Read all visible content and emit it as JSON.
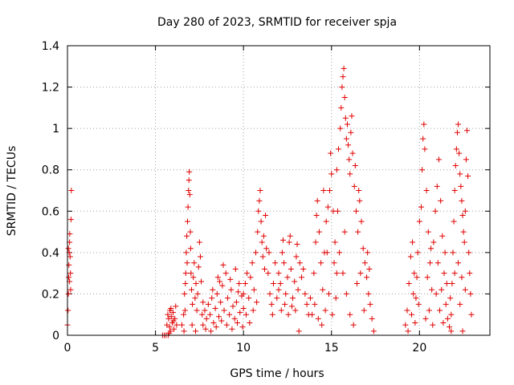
{
  "chart_data": {
    "type": "scatter",
    "title": "Day 280 of 2023, SRMTID for receiver spja",
    "xlabel": "GPS time / hours",
    "ylabel": "SRMTID / TECUs",
    "xlim": [
      0,
      24
    ],
    "ylim": [
      0,
      1.4
    ],
    "xticks": [
      0,
      5,
      10,
      15,
      20
    ],
    "xtick_labels": [
      "0",
      "5",
      "10",
      "15",
      "20"
    ],
    "yticks": [
      0,
      0.2,
      0.4,
      0.6,
      0.8,
      1.0,
      1.2,
      1.4
    ],
    "ytick_labels": [
      "0",
      "0.2",
      "0.4",
      "0.6",
      "0.8",
      "1",
      "1.2",
      "1.4"
    ],
    "grid": true,
    "marker": "+",
    "color": "#e00000",
    "series": [
      {
        "name": "SRMTID",
        "points": [
          [
            0.0,
            0.05
          ],
          [
            0.03,
            0.12
          ],
          [
            0.05,
            0.2
          ],
          [
            0.07,
            0.28
          ],
          [
            0.08,
            0.34
          ],
          [
            0.1,
            0.4
          ],
          [
            0.12,
            0.45
          ],
          [
            0.13,
            0.49
          ],
          [
            0.15,
            0.38
          ],
          [
            0.17,
            0.3
          ],
          [
            0.18,
            0.22
          ],
          [
            0.2,
            0.56
          ],
          [
            0.22,
            0.7
          ],
          [
            0.05,
            0.42
          ],
          [
            0.12,
            0.26
          ],
          [
            5.4,
            0.0
          ],
          [
            5.5,
            0.0
          ],
          [
            5.6,
            0.0
          ],
          [
            5.65,
            0.05
          ],
          [
            5.7,
            0.1
          ],
          [
            5.72,
            0.0
          ],
          [
            5.75,
            0.08
          ],
          [
            5.8,
            0.04
          ],
          [
            5.82,
            0.12
          ],
          [
            5.85,
            0.02
          ],
          [
            5.9,
            0.09
          ],
          [
            5.95,
            0.06
          ],
          [
            6.0,
            0.11
          ],
          [
            6.05,
            0.03
          ],
          [
            6.1,
            0.08
          ],
          [
            6.15,
            0.14
          ],
          [
            6.2,
            0.05
          ],
          [
            5.78,
            0.01
          ],
          [
            5.88,
            0.13
          ],
          [
            6.02,
            0.07
          ],
          [
            6.5,
            0.05
          ],
          [
            6.6,
            0.1
          ],
          [
            6.65,
            0.2
          ],
          [
            6.7,
            0.25
          ],
          [
            6.72,
            0.3
          ],
          [
            6.75,
            0.4
          ],
          [
            6.78,
            0.48
          ],
          [
            6.8,
            0.35
          ],
          [
            6.82,
            0.55
          ],
          [
            6.85,
            0.62
          ],
          [
            6.88,
            0.7
          ],
          [
            6.9,
            0.75
          ],
          [
            6.92,
            0.79
          ],
          [
            6.95,
            0.68
          ],
          [
            6.98,
            0.5
          ],
          [
            7.0,
            0.42
          ],
          [
            7.02,
            0.3
          ],
          [
            7.05,
            0.22
          ],
          [
            7.1,
            0.15
          ],
          [
            7.15,
            0.28
          ],
          [
            7.2,
            0.35
          ],
          [
            7.25,
            0.18
          ],
          [
            7.3,
            0.25
          ],
          [
            7.35,
            0.12
          ],
          [
            7.4,
            0.2
          ],
          [
            7.45,
            0.33
          ],
          [
            7.5,
            0.45
          ],
          [
            7.55,
            0.38
          ],
          [
            7.6,
            0.26
          ],
          [
            7.65,
            0.1
          ],
          [
            7.7,
            0.16
          ],
          [
            6.62,
            0.02
          ],
          [
            6.68,
            0.12
          ],
          [
            7.08,
            0.05
          ],
          [
            7.28,
            0.02
          ],
          [
            7.7,
            0.05
          ],
          [
            7.8,
            0.12
          ],
          [
            7.9,
            0.08
          ],
          [
            8.0,
            0.15
          ],
          [
            8.1,
            0.1
          ],
          [
            8.2,
            0.18
          ],
          [
            8.3,
            0.06
          ],
          [
            8.4,
            0.13
          ],
          [
            8.5,
            0.2
          ],
          [
            8.6,
            0.09
          ],
          [
            8.7,
            0.16
          ],
          [
            8.8,
            0.24
          ],
          [
            8.9,
            0.12
          ],
          [
            9.0,
            0.3
          ],
          [
            9.1,
            0.18
          ],
          [
            9.2,
            0.1
          ],
          [
            9.3,
            0.22
          ],
          [
            9.4,
            0.14
          ],
          [
            9.5,
            0.08
          ],
          [
            9.6,
            0.16
          ],
          [
            9.7,
            0.21
          ],
          [
            9.8,
            0.11
          ],
          [
            9.9,
            0.19
          ],
          [
            10.0,
            0.13
          ],
          [
            7.85,
            0.03
          ],
          [
            8.15,
            0.02
          ],
          [
            8.45,
            0.04
          ],
          [
            8.75,
            0.07
          ],
          [
            9.05,
            0.05
          ],
          [
            9.35,
            0.03
          ],
          [
            9.65,
            0.06
          ],
          [
            9.95,
            0.04
          ],
          [
            8.55,
            0.28
          ],
          [
            8.85,
            0.34
          ],
          [
            9.25,
            0.27
          ],
          [
            9.55,
            0.32
          ],
          [
            9.75,
            0.25
          ],
          [
            8.25,
            0.22
          ],
          [
            8.65,
            0.26
          ],
          [
            10.0,
            0.2
          ],
          [
            10.1,
            0.25
          ],
          [
            10.2,
            0.3
          ],
          [
            10.3,
            0.18
          ],
          [
            10.4,
            0.28
          ],
          [
            10.5,
            0.35
          ],
          [
            10.6,
            0.22
          ],
          [
            10.7,
            0.4
          ],
          [
            10.8,
            0.5
          ],
          [
            10.85,
            0.6
          ],
          [
            10.9,
            0.65
          ],
          [
            10.95,
            0.7
          ],
          [
            11.0,
            0.55
          ],
          [
            11.05,
            0.45
          ],
          [
            11.1,
            0.38
          ],
          [
            11.2,
            0.32
          ],
          [
            11.3,
            0.42
          ],
          [
            11.4,
            0.3
          ],
          [
            11.5,
            0.2
          ],
          [
            11.6,
            0.15
          ],
          [
            11.7,
            0.25
          ],
          [
            11.8,
            0.35
          ],
          [
            11.9,
            0.18
          ],
          [
            12.0,
            0.22
          ],
          [
            10.15,
            0.1
          ],
          [
            10.35,
            0.06
          ],
          [
            10.55,
            0.12
          ],
          [
            10.75,
            0.16
          ],
          [
            11.15,
            0.48
          ],
          [
            11.25,
            0.58
          ],
          [
            11.45,
            0.4
          ],
          [
            11.65,
            0.1
          ],
          [
            12.0,
            0.3
          ],
          [
            12.1,
            0.25
          ],
          [
            12.2,
            0.4
          ],
          [
            12.3,
            0.35
          ],
          [
            12.4,
            0.2
          ],
          [
            12.5,
            0.28
          ],
          [
            12.6,
            0.45
          ],
          [
            12.7,
            0.32
          ],
          [
            12.8,
            0.18
          ],
          [
            12.9,
            0.26
          ],
          [
            13.0,
            0.38
          ],
          [
            13.1,
            0.22
          ],
          [
            13.15,
            0.02
          ],
          [
            13.2,
            0.35
          ],
          [
            13.3,
            0.28
          ],
          [
            13.4,
            0.32
          ],
          [
            13.5,
            0.2
          ],
          [
            13.6,
            0.15
          ],
          [
            13.7,
            0.1
          ],
          [
            13.8,
            0.18
          ],
          [
            12.15,
            0.12
          ],
          [
            12.35,
            0.15
          ],
          [
            12.55,
            0.1
          ],
          [
            12.75,
            0.14
          ],
          [
            12.95,
            0.12
          ],
          [
            12.25,
            0.46
          ],
          [
            12.65,
            0.48
          ],
          [
            13.05,
            0.44
          ],
          [
            13.9,
            0.1
          ],
          [
            14.0,
            0.3
          ],
          [
            14.1,
            0.45
          ],
          [
            14.2,
            0.65
          ],
          [
            14.3,
            0.5
          ],
          [
            14.4,
            0.35
          ],
          [
            14.5,
            0.22
          ],
          [
            14.6,
            0.4
          ],
          [
            14.7,
            0.55
          ],
          [
            14.8,
            0.62
          ],
          [
            14.9,
            0.7
          ],
          [
            15.0,
            0.78
          ],
          [
            15.1,
            0.6
          ],
          [
            15.2,
            0.45
          ],
          [
            15.3,
            0.3
          ],
          [
            14.05,
            0.15
          ],
          [
            14.25,
            0.08
          ],
          [
            14.45,
            0.05
          ],
          [
            14.65,
            0.12
          ],
          [
            14.85,
            0.2
          ],
          [
            15.05,
            0.1
          ],
          [
            15.25,
            0.18
          ],
          [
            14.15,
            0.58
          ],
          [
            14.55,
            0.7
          ],
          [
            14.75,
            0.4
          ],
          [
            14.95,
            0.88
          ],
          [
            15.15,
            0.35
          ],
          [
            15.3,
            0.8
          ],
          [
            15.4,
            0.9
          ],
          [
            15.5,
            1.0
          ],
          [
            15.55,
            1.1
          ],
          [
            15.6,
            1.2
          ],
          [
            15.65,
            1.25
          ],
          [
            15.7,
            1.29
          ],
          [
            15.75,
            1.15
          ],
          [
            15.8,
            1.05
          ],
          [
            15.85,
            0.95
          ],
          [
            15.9,
            1.02
          ],
          [
            15.95,
            0.92
          ],
          [
            16.0,
            0.85
          ],
          [
            16.05,
            0.78
          ],
          [
            16.1,
            0.98
          ],
          [
            16.15,
            1.06
          ],
          [
            16.2,
            0.88
          ],
          [
            16.3,
            0.72
          ],
          [
            16.4,
            0.6
          ],
          [
            16.5,
            0.5
          ],
          [
            16.6,
            0.65
          ],
          [
            16.7,
            0.55
          ],
          [
            16.8,
            0.42
          ],
          [
            16.9,
            0.35
          ],
          [
            17.0,
            0.28
          ],
          [
            17.1,
            0.2
          ],
          [
            17.2,
            0.15
          ],
          [
            17.3,
            0.08
          ],
          [
            17.4,
            0.02
          ],
          [
            15.45,
            0.4
          ],
          [
            15.65,
            0.3
          ],
          [
            15.85,
            0.2
          ],
          [
            16.05,
            0.1
          ],
          [
            16.25,
            0.05
          ],
          [
            16.45,
            0.25
          ],
          [
            16.65,
            0.3
          ],
          [
            16.85,
            0.12
          ],
          [
            17.05,
            0.4
          ],
          [
            17.15,
            0.32
          ],
          [
            16.35,
            0.82
          ],
          [
            16.55,
            0.7
          ],
          [
            15.35,
            0.6
          ],
          [
            15.75,
            0.5
          ],
          [
            19.2,
            0.05
          ],
          [
            19.3,
            0.12
          ],
          [
            19.4,
            0.25
          ],
          [
            19.5,
            0.38
          ],
          [
            19.6,
            0.45
          ],
          [
            19.7,
            0.3
          ],
          [
            19.8,
            0.18
          ],
          [
            19.9,
            0.4
          ],
          [
            20.0,
            0.55
          ],
          [
            20.1,
            0.62
          ],
          [
            20.15,
            0.8
          ],
          [
            20.2,
            0.95
          ],
          [
            20.25,
            1.02
          ],
          [
            20.3,
            0.9
          ],
          [
            20.4,
            0.7
          ],
          [
            20.5,
            0.5
          ],
          [
            20.6,
            0.35
          ],
          [
            20.7,
            0.22
          ],
          [
            20.8,
            0.45
          ],
          [
            20.9,
            0.6
          ],
          [
            21.0,
            0.72
          ],
          [
            21.1,
            0.85
          ],
          [
            21.2,
            0.65
          ],
          [
            21.3,
            0.48
          ],
          [
            21.4,
            0.3
          ],
          [
            21.5,
            0.15
          ],
          [
            21.6,
            0.08
          ],
          [
            21.7,
            0.04
          ],
          [
            21.8,
            0.02
          ],
          [
            19.35,
            0.02
          ],
          [
            19.55,
            0.1
          ],
          [
            19.75,
            0.06
          ],
          [
            19.95,
            0.15
          ],
          [
            20.35,
            0.08
          ],
          [
            20.55,
            0.12
          ],
          [
            20.75,
            0.05
          ],
          [
            20.95,
            0.2
          ],
          [
            21.15,
            0.12
          ],
          [
            21.35,
            0.06
          ],
          [
            21.55,
            0.25
          ],
          [
            21.75,
            0.18
          ],
          [
            20.45,
            0.28
          ],
          [
            20.65,
            0.42
          ],
          [
            21.05,
            0.35
          ],
          [
            21.25,
            0.22
          ],
          [
            21.45,
            0.4
          ],
          [
            19.65,
            0.2
          ],
          [
            19.85,
            0.28
          ],
          [
            21.8,
            0.1
          ],
          [
            21.85,
            0.25
          ],
          [
            21.9,
            0.4
          ],
          [
            21.95,
            0.55
          ],
          [
            22.0,
            0.7
          ],
          [
            22.05,
            0.82
          ],
          [
            22.1,
            0.9
          ],
          [
            22.15,
            0.98
          ],
          [
            22.2,
            1.02
          ],
          [
            22.25,
            0.88
          ],
          [
            22.3,
            0.78
          ],
          [
            22.35,
            0.72
          ],
          [
            22.4,
            0.65
          ],
          [
            22.45,
            0.58
          ],
          [
            22.5,
            0.5
          ],
          [
            22.55,
            0.45
          ],
          [
            22.6,
            0.6
          ],
          [
            22.65,
            0.85
          ],
          [
            22.7,
            0.99
          ],
          [
            22.75,
            0.77
          ],
          [
            22.8,
            0.4
          ],
          [
            22.85,
            0.3
          ],
          [
            22.9,
            0.2
          ],
          [
            22.95,
            0.1
          ],
          [
            22.45,
            0.02
          ],
          [
            22.0,
            0.3
          ],
          [
            22.2,
            0.35
          ],
          [
            22.4,
            0.28
          ],
          [
            22.6,
            0.22
          ],
          [
            22.3,
            0.15
          ]
        ]
      }
    ]
  }
}
